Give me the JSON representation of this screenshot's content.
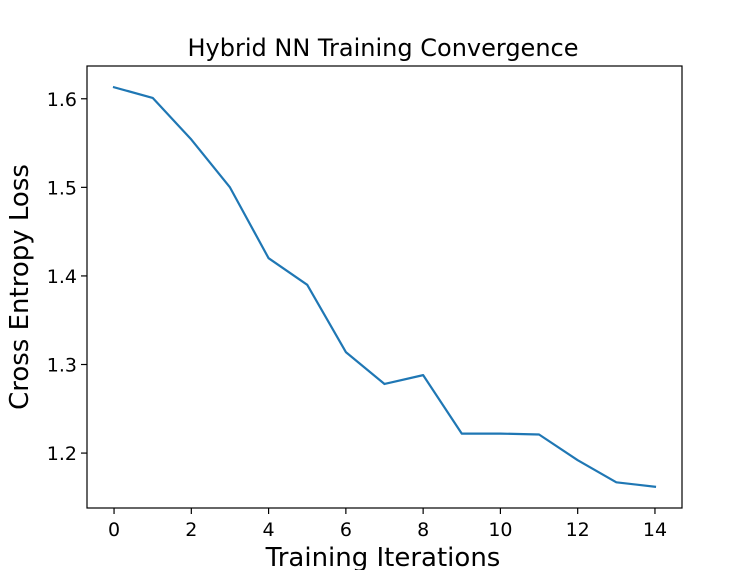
{
  "chart_data": {
    "type": "line",
    "title": "Hybrid NN Training Convergence",
    "xlabel": "Training Iterations",
    "ylabel": "Cross Entropy Loss",
    "x": [
      0,
      1,
      2,
      3,
      4,
      5,
      6,
      7,
      8,
      9,
      10,
      11,
      12,
      13,
      14
    ],
    "series": [
      {
        "values": [
          1.613,
          1.601,
          1.554,
          1.5,
          1.42,
          1.39,
          1.314,
          1.278,
          1.288,
          1.222,
          1.222,
          1.221,
          1.192,
          1.167,
          1.162
        ],
        "color": "#1f77b4"
      }
    ],
    "xlim": [
      -0.7,
      14.7
    ],
    "ylim": [
      1.138,
      1.637
    ],
    "xticks": [
      0,
      2,
      4,
      6,
      8,
      10,
      12,
      14
    ],
    "yticks": [
      1.2,
      1.3,
      1.4,
      1.5,
      1.6
    ],
    "xtick_labels": [
      "0",
      "2",
      "4",
      "6",
      "8",
      "10",
      "12",
      "14"
    ],
    "ytick_labels": [
      "1.2",
      "1.3",
      "1.4",
      "1.5",
      "1.6"
    ],
    "grid": false,
    "legend": "none"
  }
}
